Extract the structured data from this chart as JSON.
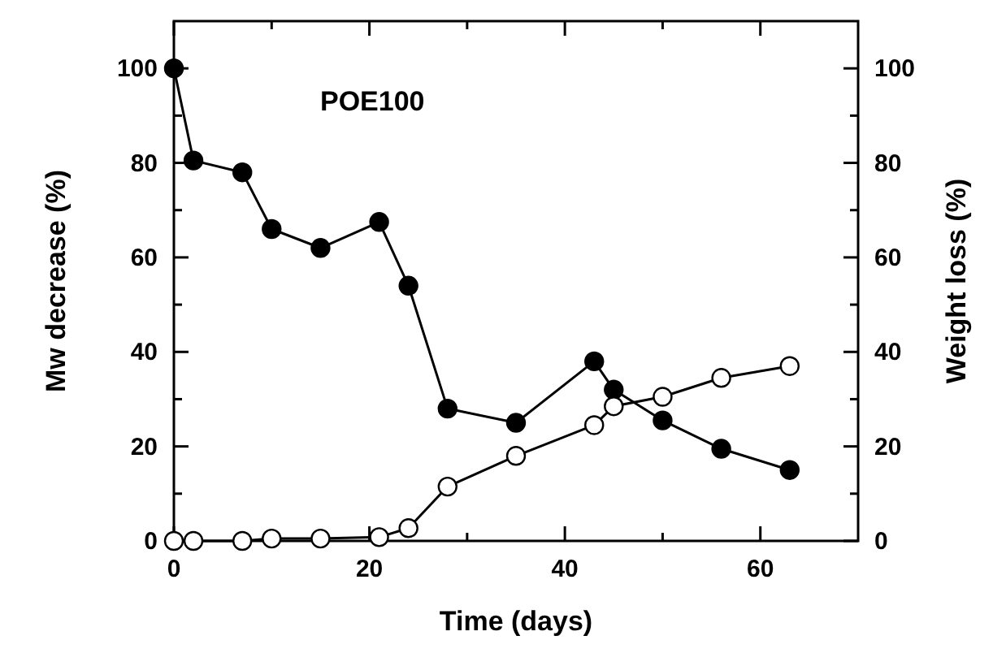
{
  "chart_data": {
    "type": "line",
    "xlabel": "Time (days)",
    "ylabel": "Mw decrease (%)",
    "y2label": "Weight loss (%)",
    "annotations": [
      "POE100"
    ],
    "xlim": [
      0,
      70
    ],
    "xticks": [
      0,
      {
        "value": 10,
        "label": null
      },
      20,
      {
        "value": 30,
        "label": null
      },
      40,
      {
        "value": 50,
        "label": null
      },
      60
    ],
    "ylim": [
      0,
      110
    ],
    "yticks": [
      0,
      {
        "value": 10,
        "label": null
      },
      20,
      {
        "value": 30,
        "label": null
      },
      40,
      {
        "value": 50,
        "label": null
      },
      60,
      {
        "value": 70,
        "label": null
      },
      80,
      {
        "value": 90,
        "label": null
      },
      100
    ],
    "y2lim": [
      0,
      110
    ],
    "y2ticks": [
      0,
      {
        "value": 10,
        "label": null
      },
      20,
      {
        "value": 30,
        "label": null
      },
      40,
      {
        "value": 50,
        "label": null
      },
      60,
      {
        "value": 70,
        "label": null
      },
      80,
      {
        "value": 90,
        "label": null
      },
      100
    ],
    "marker": "circle",
    "grid": false,
    "series": [
      {
        "color": "#000000",
        "x": [
          0,
          2,
          7,
          10,
          15,
          21,
          24,
          28,
          35,
          43,
          45,
          50,
          56,
          63
        ],
        "values": [
          100,
          80.5,
          78,
          66,
          62,
          67.5,
          54,
          28,
          25,
          38,
          32,
          25.5,
          19.5,
          15
        ]
      },
      {
        "color": "#ffffff",
        "axis": "y2",
        "x": [
          0,
          2,
          7,
          10,
          15,
          21,
          24,
          28,
          35,
          43,
          45,
          50,
          56,
          63
        ],
        "values": [
          0,
          0,
          0,
          0.5,
          0.5,
          0.8,
          2.7,
          11.5,
          18,
          24.5,
          28.5,
          30.5,
          34.5,
          37
        ]
      }
    ]
  }
}
